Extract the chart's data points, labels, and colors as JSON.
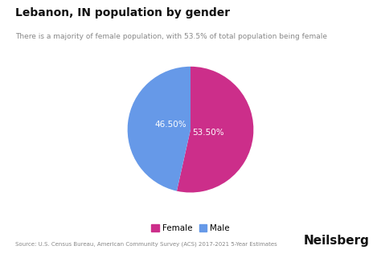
{
  "title": "Lebanon, IN population by gender",
  "subtitle": "There is a majority of female population, with 53.5% of total population being female",
  "slices": [
    53.5,
    46.5
  ],
  "labels": [
    "Female",
    "Male"
  ],
  "colors": [
    "#CC2E8A",
    "#6699E8"
  ],
  "autopct_labels": [
    "53.50%",
    "46.50%"
  ],
  "legend_labels": [
    "Female",
    "Male"
  ],
  "source_text": "Source: U.S. Census Bureau, American Community Survey (ACS) 2017-2021 5-Year Estimates",
  "brand_text": "Neilsberg",
  "background_color": "#ffffff",
  "label_color": "#ffffff",
  "startangle": 90
}
